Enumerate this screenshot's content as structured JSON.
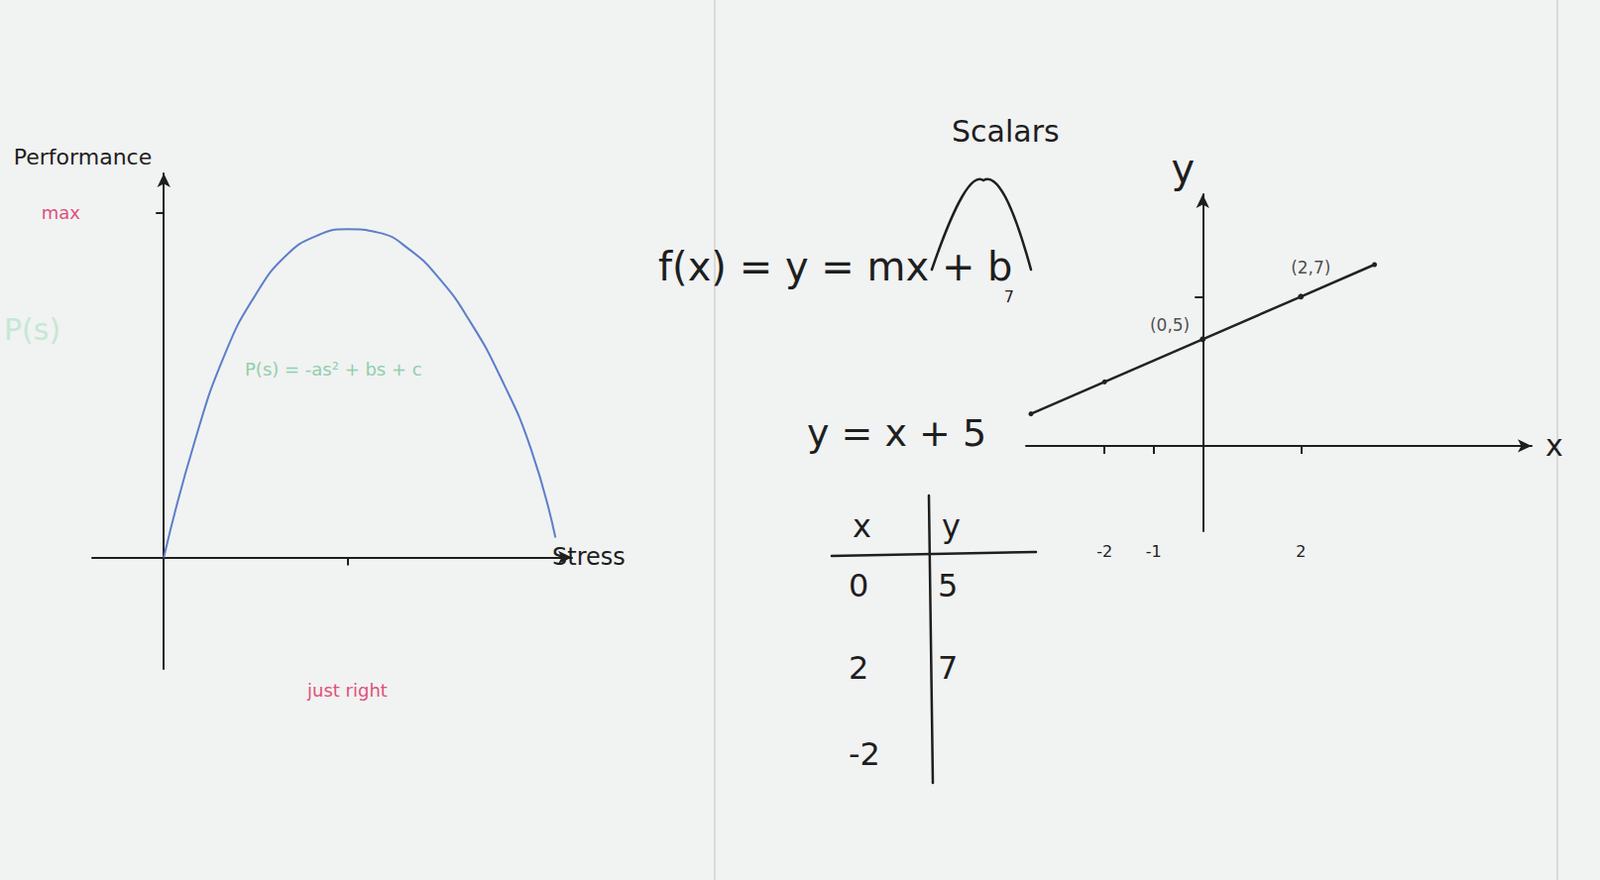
{
  "chart_data": [
    {
      "type": "line",
      "x_label": "Stress",
      "y_label": "Performance",
      "x": [
        0,
        0.5,
        1,
        1.5,
        2,
        2.5,
        3,
        3.5,
        4,
        4.5,
        5,
        5.5,
        6,
        6.4
      ],
      "values": [
        0,
        3.5,
        6.2,
        8.0,
        9.2,
        9.8,
        10,
        9.9,
        9.4,
        8.5,
        7.2,
        5.5,
        3.3,
        0.6
      ],
      "color": "#5b7fc9",
      "xlim": [
        -1.17,
        6.67
      ],
      "ylim": [
        -3.4,
        11.7
      ],
      "xticks": [
        {
          "value": 3,
          "label": "just right"
        }
      ],
      "yticks": [
        {
          "value": 10.5,
          "label": "max"
        }
      ],
      "annotations": [
        "P(s) = -as² + bs + c",
        "P(s)"
      ]
    },
    {
      "type": "line",
      "x_label": "x",
      "y_label": "y",
      "x": [
        -3.5,
        -2,
        0,
        2,
        3.5
      ],
      "values": [
        1.5,
        3,
        5,
        7,
        8.5
      ],
      "color": "#222222",
      "xlim": [
        -3.6,
        6.7
      ],
      "ylim": [
        -4,
        11.8
      ],
      "xticks": [
        -2,
        -1,
        2
      ],
      "yticks": [
        7
      ],
      "points": [
        {
          "x": 0,
          "y": 5,
          "label": "(0,5)"
        },
        {
          "x": 2,
          "y": 7,
          "label": "(2,7)"
        }
      ]
    }
  ],
  "equations": {
    "general": "f(x) = y = mx + b",
    "bracket_label": "Scalars",
    "example": "y = x + 5"
  },
  "table": {
    "header": [
      "x",
      "y"
    ],
    "rows": [
      [
        0,
        5
      ],
      [
        2,
        7
      ],
      [
        -2,
        null
      ]
    ]
  }
}
